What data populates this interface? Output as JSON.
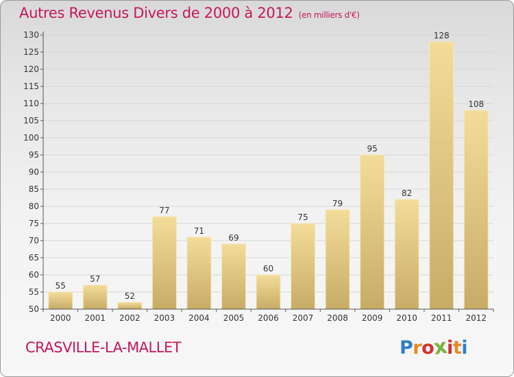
{
  "header": {
    "title": "Autres Revenus Divers de 2000 à 2012",
    "unit_note": "(en milliers d'€)"
  },
  "footer": {
    "place_name": "CRASVILLE-LA-MALLET",
    "logo_letters": [
      "P",
      "r",
      "o",
      "x",
      "i",
      "t",
      "i"
    ],
    "logo_colors": [
      "#2f7fc8",
      "#e88a1e",
      "#d32f2f",
      "#7cb342",
      "#d32f2f",
      "#e88a1e",
      "#2f7fc8"
    ]
  },
  "chart_data": {
    "type": "bar",
    "title": "Autres Revenus Divers de 2000 à 2012",
    "subtitle": "(en milliers d'€)",
    "categories": [
      "2000",
      "2001",
      "2002",
      "2003",
      "2004",
      "2005",
      "2006",
      "2007",
      "2008",
      "2009",
      "2010",
      "2011",
      "2012"
    ],
    "values": [
      55,
      57,
      52,
      77,
      71,
      69,
      60,
      75,
      79,
      95,
      82,
      128,
      108
    ],
    "ylim": [
      50,
      130
    ],
    "yticks": [
      50,
      55,
      60,
      65,
      70,
      75,
      80,
      85,
      90,
      95,
      100,
      105,
      110,
      115,
      120,
      125,
      130
    ],
    "grid": true,
    "data_labels": true,
    "colors": {
      "bar_top": "#f3dc9a",
      "bar_bottom": "#c7ac66",
      "axis": "#555555",
      "grid": "#d6d6d6",
      "text": "#333333"
    }
  }
}
